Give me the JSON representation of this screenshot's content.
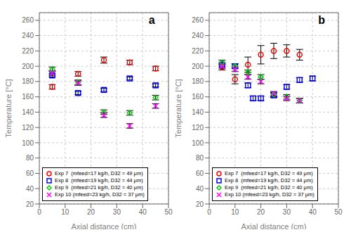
{
  "chart_data": [
    {
      "type": "scatter",
      "title": "a",
      "x_label": "Axial distance (cm)",
      "y_label": "Temperature [°C]",
      "xlim": [
        0,
        50
      ],
      "ylim": [
        20,
        270
      ],
      "xticks": [
        0,
        10,
        20,
        30,
        40,
        50
      ],
      "yticks": [
        20,
        40,
        60,
        80,
        100,
        120,
        140,
        160,
        180,
        200,
        220,
        240,
        260
      ],
      "grid": true,
      "legend": "lower left",
      "series": [
        {
          "name": "Exp 7  (mfeed=17 kg/h, D32 = 49 μm)",
          "color": "red",
          "marker": "circle",
          "x": [
            5,
            15,
            25,
            35,
            45
          ],
          "values": [
            173,
            190,
            208,
            205,
            197
          ],
          "yerr": [
            3,
            3,
            4,
            3,
            3
          ]
        },
        {
          "name": "Exp 8  (mfeed=19 kg/h, D32 = 44 μm)",
          "color": "blue",
          "marker": "square",
          "x": [
            5,
            15,
            25,
            35,
            45
          ],
          "values": [
            188,
            165,
            169,
            184,
            175
          ],
          "yerr": [
            2,
            2,
            2,
            2,
            2
          ]
        },
        {
          "name": "Exp 9  (mfeed=21 kg/h, D32 = 40 μm)",
          "color": "#00cc00",
          "marker": "diamond",
          "x": [
            5,
            15,
            25,
            35,
            45
          ],
          "values": [
            196,
            179,
            140,
            139,
            159
          ],
          "yerr": [
            3,
            3,
            3,
            3,
            3
          ]
        },
        {
          "name": "Exp 10 (mfeed=23 kg/h, D32 = 37 μm)",
          "color": "magenta",
          "marker": "x",
          "x": [
            5,
            15,
            25,
            35,
            45
          ],
          "values": [
            191,
            178,
            136,
            122,
            148
          ],
          "yerr": [
            3,
            3,
            3,
            3,
            3
          ]
        }
      ]
    },
    {
      "type": "scatter",
      "title": "b",
      "x_label": "Axial distance (cm)",
      "y_label": "Temperature [°C]",
      "xlim": [
        0,
        50
      ],
      "ylim": [
        20,
        270
      ],
      "xticks": [
        0,
        10,
        20,
        30,
        40,
        50
      ],
      "yticks": [
        20,
        40,
        60,
        80,
        100,
        120,
        140,
        160,
        180,
        200,
        220,
        240,
        260
      ],
      "grid": true,
      "legend": "lower left",
      "series": [
        {
          "name": "Exp 7  (mfeed=17 kg/h, D32 = 49 μm)",
          "color": "red",
          "marker": "circle",
          "x": [
            5,
            10,
            15,
            20,
            25,
            30,
            35
          ],
          "values": [
            199,
            183,
            202,
            215,
            220,
            220,
            215
          ],
          "yerr": [
            4,
            6,
            10,
            12,
            10,
            8,
            7
          ]
        },
        {
          "name": "Exp 8  (mfeed=19 kg/h, D32 = 44 μm)",
          "color": "blue",
          "marker": "square",
          "x": [
            5,
            10,
            15,
            17,
            20,
            25,
            30,
            35,
            40
          ],
          "values": [
            202,
            200,
            175,
            158,
            158,
            162,
            173,
            182,
            184
          ],
          "yerr": [
            3,
            3,
            3,
            3,
            3,
            3,
            3,
            3,
            3
          ]
        },
        {
          "name": "Exp 9  (mfeed=21 kg/h, D32 = 40 μm)",
          "color": "#00cc00",
          "marker": "diamond",
          "x": [
            5,
            10,
            15,
            20,
            25,
            30,
            35
          ],
          "values": [
            205,
            200,
            192,
            186,
            163,
            160,
            155
          ],
          "yerr": [
            3,
            3,
            3,
            3,
            3,
            3,
            3
          ]
        },
        {
          "name": "Exp 10 (mfeed=23 kg/h, D32 = 37 μm)",
          "color": "magenta",
          "marker": "x",
          "x": [
            5,
            10,
            15,
            20,
            25,
            30,
            35
          ],
          "values": [
            200,
            196,
            186,
            180,
            164,
            158,
            155
          ],
          "yerr": [
            3,
            3,
            3,
            3,
            3,
            3,
            3
          ]
        }
      ]
    }
  ]
}
